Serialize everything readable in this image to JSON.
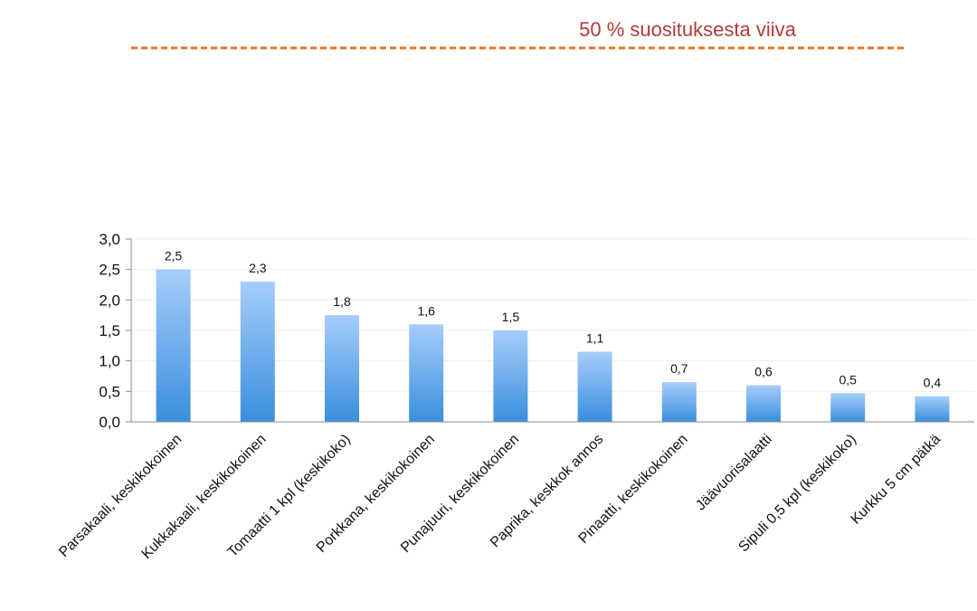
{
  "chart_data": {
    "type": "bar",
    "categories": [
      "Parsakaali, keskikokoinen",
      "Kukkakaali, keskikokoinen",
      "Tomaatti 1 kpl (keskikoko)",
      "Porkkana, keskikokoinen",
      "Punajuuri, keskikokoinen",
      "Paprika, keskkok annos",
      "Pinaatti, keskikokoinen",
      "Jäävuorisalaatti",
      "Sipuli 0,5 kpl (keskikoko)",
      "Kurkku 5 cm pätkä"
    ],
    "values": [
      2.5,
      2.3,
      1.75,
      1.6,
      1.5,
      1.15,
      0.65,
      0.6,
      0.47,
      0.42
    ],
    "data_labels": [
      "2,5",
      "2,3",
      "1,8",
      "1,6",
      "1,5",
      "1,1",
      "0,7",
      "0,6",
      "0,5",
      "0,4"
    ],
    "y_ticks": [
      "0,0",
      "0,5",
      "1,0",
      "1,5",
      "2,0",
      "2,5",
      "3,0"
    ],
    "ylim": [
      0,
      3
    ],
    "y_step": 0.5,
    "grid": true,
    "bar_gradient": [
      "#a6cdfb",
      "#3a8fdd"
    ],
    "reference_line": {
      "label": "50 % suosituksesta viiva",
      "color": "#e87722",
      "label_color": "#b03a3a"
    }
  }
}
